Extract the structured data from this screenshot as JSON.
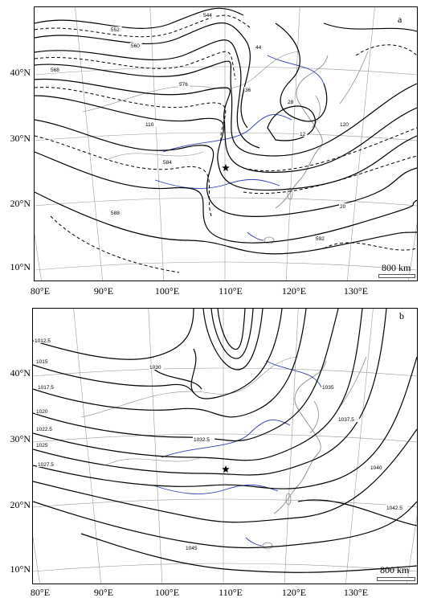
{
  "panels": [
    {
      "id": "a",
      "letter": "a",
      "scale_text": "800 km",
      "contour_labels": [
        "544",
        "552",
        "560",
        "568",
        "576",
        "584",
        "588",
        "592",
        "20",
        "28",
        "36",
        "44",
        "12",
        "110",
        "120"
      ]
    },
    {
      "id": "b",
      "letter": "b",
      "scale_text": "800 km",
      "contour_labels": [
        "1012.5",
        "1015",
        "1017.5",
        "1020",
        "1022.5",
        "1025",
        "1027.5",
        "1030",
        "1032.5",
        "1035",
        "1037.5",
        "1040",
        "1042.5",
        "1045"
      ]
    }
  ],
  "axes": {
    "lat_labels": [
      "40°N",
      "30°N",
      "20°N",
      "10°N"
    ],
    "lon_labels": [
      "80°E",
      "90°E",
      "100°E",
      "110°E",
      "120°E",
      "130°E"
    ]
  },
  "colors": {
    "contour": "#000000",
    "graticule": "#9a9a9a",
    "river": "#2d3fb0",
    "border": "#8a8a8a"
  }
}
